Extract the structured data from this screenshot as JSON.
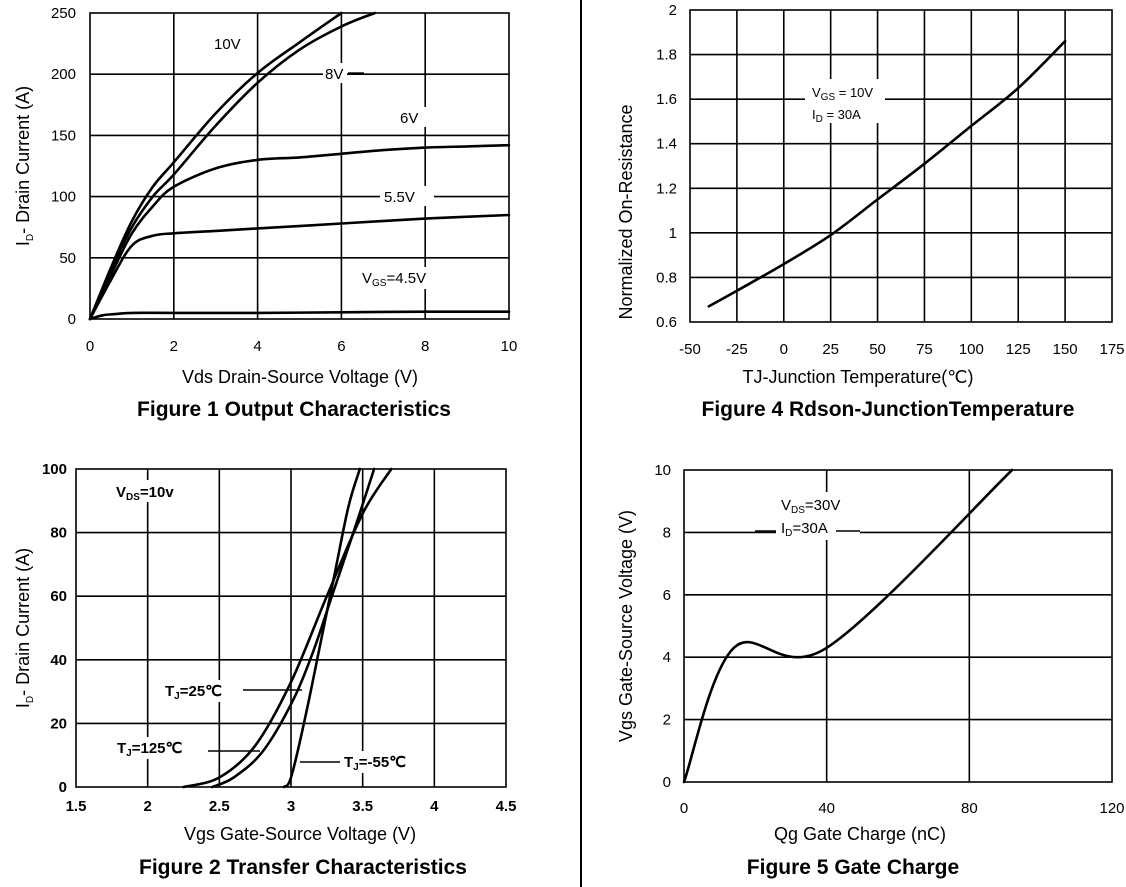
{
  "chart_data": [
    {
      "id": "fig1",
      "type": "line",
      "title": "Figure 1 Output Characteristics",
      "xlabel": "Vds Drain-Source Voltage (V)",
      "ylabel_main": "I",
      "ylabel_sub": "D",
      "ylabel_rest": "- Drain Current (A)",
      "xlim": [
        0,
        10
      ],
      "ylim": [
        0,
        250
      ],
      "xticks": [
        0,
        2,
        4,
        6,
        8,
        10
      ],
      "yticks": [
        0,
        50,
        100,
        150,
        200,
        250
      ],
      "series": [
        {
          "name": "10V",
          "x": [
            0,
            0.5,
            1,
            1.5,
            2,
            3,
            4,
            5,
            6
          ],
          "y": [
            0,
            42,
            80,
            108,
            128,
            168,
            201,
            226,
            250
          ]
        },
        {
          "name": "8V",
          "x": [
            0,
            0.5,
            1,
            1.5,
            2,
            3,
            4,
            5,
            6,
            6.8
          ],
          "y": [
            0,
            40,
            75,
            100,
            118,
            158,
            193,
            220,
            239,
            250
          ]
        },
        {
          "name": "6V",
          "x": [
            0,
            0.5,
            1,
            1.5,
            2,
            3,
            4,
            5,
            6,
            7,
            8,
            9,
            10
          ],
          "y": [
            0,
            36,
            70,
            92,
            108,
            123,
            130,
            132,
            135,
            138,
            140,
            141,
            142
          ]
        },
        {
          "name": "5.5V",
          "x": [
            0,
            0.5,
            1,
            1.5,
            2,
            3,
            4,
            6,
            8,
            10
          ],
          "y": [
            0,
            32,
            60,
            68,
            70,
            72,
            74,
            78,
            82,
            85
          ]
        },
        {
          "name": "4.5V",
          "x": [
            0,
            0.3,
            0.6,
            1,
            2,
            4,
            6,
            8,
            10
          ],
          "y": [
            0,
            3,
            4,
            5,
            5,
            5,
            5.5,
            6,
            6
          ]
        }
      ],
      "annotations": {
        "v10": "10V",
        "v8": "8V",
        "v6": "6V",
        "v55": "5.5V",
        "vgs_main": "V",
        "vgs_sub": "GS",
        "vgs_rest": "=4.5V"
      }
    },
    {
      "id": "fig4",
      "type": "line",
      "title": "Figure 4 Rdson-JunctionTemperature",
      "xlabel": "TJ-Junction Temperature(℃)",
      "ylabel": "Normalized On-Resistance",
      "xlim": [
        -50,
        175
      ],
      "ylim": [
        0.6,
        2
      ],
      "xticks": [
        "-50",
        "-25",
        "0",
        "25",
        "50",
        "75",
        "100",
        "125",
        "150",
        "175"
      ],
      "yticks": [
        "0.6",
        "0.8",
        "1",
        "1.2",
        "1.4",
        "1.6",
        "1.8",
        "2"
      ],
      "series": [
        {
          "name": "Rdson",
          "x": [
            -40,
            -25,
            0,
            25,
            50,
            75,
            100,
            125,
            150
          ],
          "y": [
            0.67,
            0.74,
            0.86,
            0.99,
            1.15,
            1.31,
            1.48,
            1.65,
            1.86
          ]
        }
      ],
      "annotations": {
        "vgs_main": "V",
        "vgs_sub": "GS",
        "vgs_rest": " = 10V",
        "id_main": "I",
        "id_sub": "D",
        "id_rest": " = 30A"
      }
    },
    {
      "id": "fig2",
      "type": "line",
      "title": "Figure 2 Transfer Characteristics",
      "xlabel": "Vgs Gate-Source Voltage (V)",
      "ylabel_main": "I",
      "ylabel_sub": "D",
      "ylabel_rest": "- Drain Current (A)",
      "xlim": [
        1.5,
        4.5
      ],
      "ylim": [
        0,
        100
      ],
      "xticks": [
        "1.5",
        "2",
        "2.5",
        "3",
        "3.5",
        "4",
        "4.5"
      ],
      "yticks": [
        "0",
        "20",
        "40",
        "60",
        "80",
        "100"
      ],
      "series": [
        {
          "name": "TJ=125℃",
          "x": [
            2.25,
            2.5,
            2.75,
            3.0,
            3.25,
            3.5,
            3.7
          ],
          "y": [
            0,
            3,
            13,
            33,
            60,
            86,
            100
          ]
        },
        {
          "name": "TJ=25℃",
          "x": [
            2.45,
            2.6,
            2.8,
            3.0,
            3.15,
            3.3,
            3.45,
            3.58
          ],
          "y": [
            0,
            3,
            11,
            26,
            42,
            62,
            82,
            100
          ]
        },
        {
          "name": "TJ=-55℃",
          "x": [
            2.95,
            3.0,
            3.1,
            3.2,
            3.3,
            3.4,
            3.48
          ],
          "y": [
            0,
            3,
            22,
            44,
            66,
            88,
            100
          ]
        }
      ],
      "annotations": {
        "vds_main": "V",
        "vds_sub": "DS",
        "vds_rest": "=10v",
        "t25_main": "T",
        "t25_sub": "J",
        "t25_rest": "=25℃",
        "t125_main": "T",
        "t125_sub": "J",
        "t125_rest": "=125℃",
        "tm55_main": "T",
        "tm55_sub": "J",
        "tm55_rest": "=-55℃"
      }
    },
    {
      "id": "fig5",
      "type": "line",
      "title": "Figure 5 Gate Charge",
      "xlabel": "Qg Gate Charge (nC)",
      "ylabel": "Vgs Gate-Source Voltage (V)",
      "xlim": [
        0,
        120
      ],
      "ylim": [
        0,
        10
      ],
      "xticks": [
        "0",
        "40",
        "80",
        "120"
      ],
      "yticks": [
        "0",
        "2",
        "4",
        "6",
        "8",
        "10"
      ],
      "series": [
        {
          "name": "Vgs",
          "x": [
            0,
            14,
            40,
            92
          ],
          "y": [
            0,
            4.3,
            4.3,
            10
          ]
        }
      ],
      "annotations": {
        "vds_main": "V",
        "vds_sub": "DS",
        "vds_rest": "=30V",
        "id_main": "I",
        "id_sub": "D",
        "id_rest": "=30A"
      }
    }
  ]
}
